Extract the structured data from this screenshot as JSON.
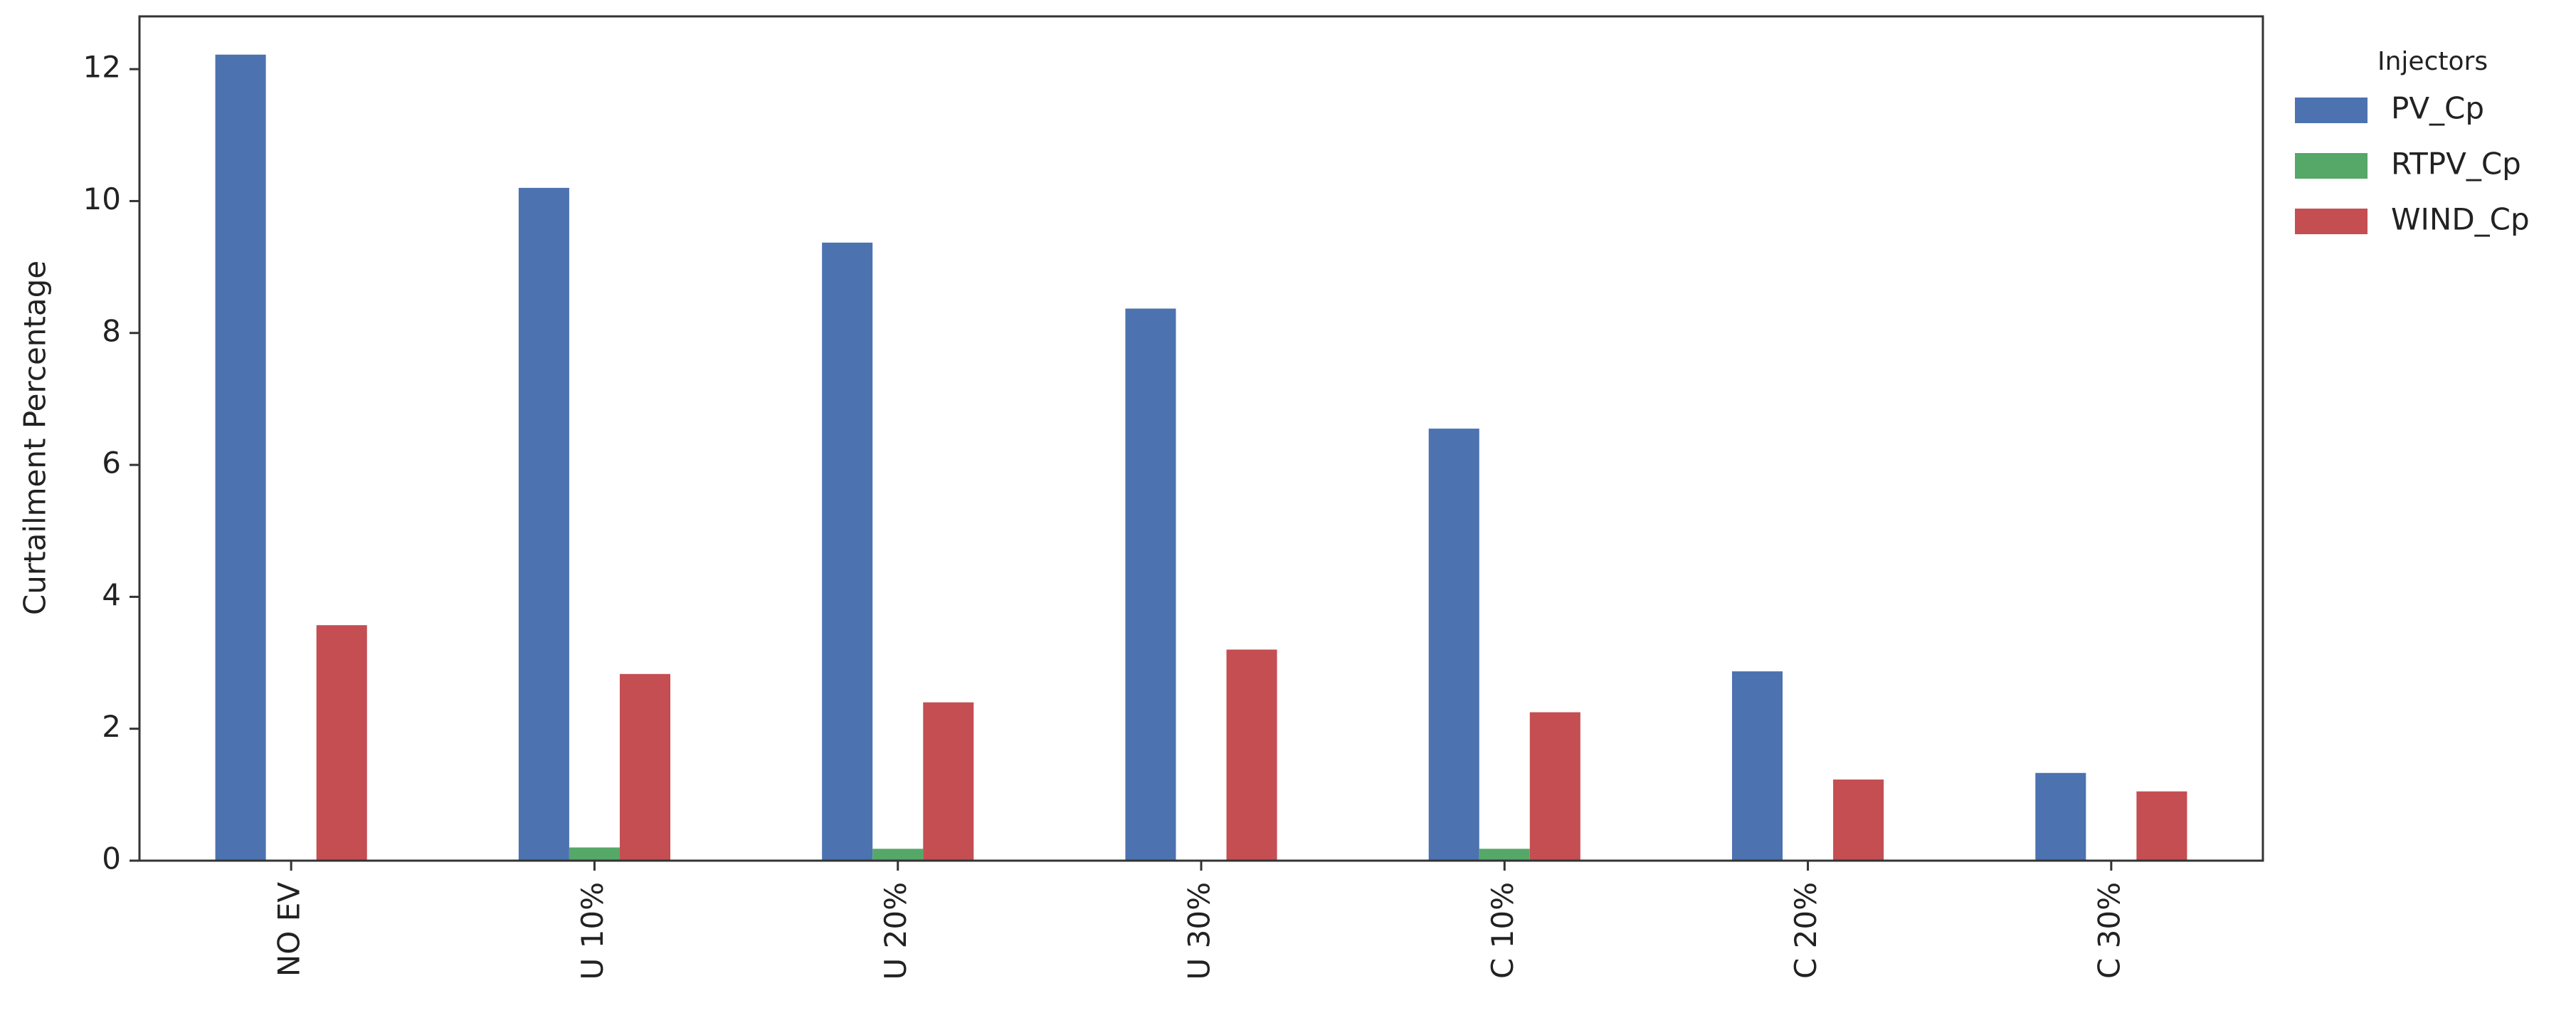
{
  "chart_data": {
    "type": "bar",
    "y_label": "Curtailment Percentage",
    "categories": [
      "NO EV",
      "U 10%",
      "U 20%",
      "U 30%",
      "C 10%",
      "C 20%",
      "C 30%"
    ],
    "series": [
      {
        "name": "PV_Cp",
        "color": "#4c72b0",
        "values": [
          12.22,
          10.2,
          9.37,
          8.37,
          6.55,
          2.87,
          1.33
        ]
      },
      {
        "name": "RTPV_Cp",
        "color": "#55a868",
        "values": [
          0,
          0.2,
          0.18,
          0,
          0.18,
          0,
          0
        ]
      },
      {
        "name": "WIND_Cp",
        "color": "#c44e52",
        "values": [
          3.57,
          2.83,
          2.4,
          3.2,
          2.25,
          1.23,
          1.05
        ]
      }
    ],
    "legend_title": "Injectors",
    "legend_position": "outside right",
    "ylim": [
      0,
      12.8
    ],
    "yticks": [
      0,
      2,
      4,
      6,
      8,
      10,
      12
    ],
    "grid": false
  }
}
